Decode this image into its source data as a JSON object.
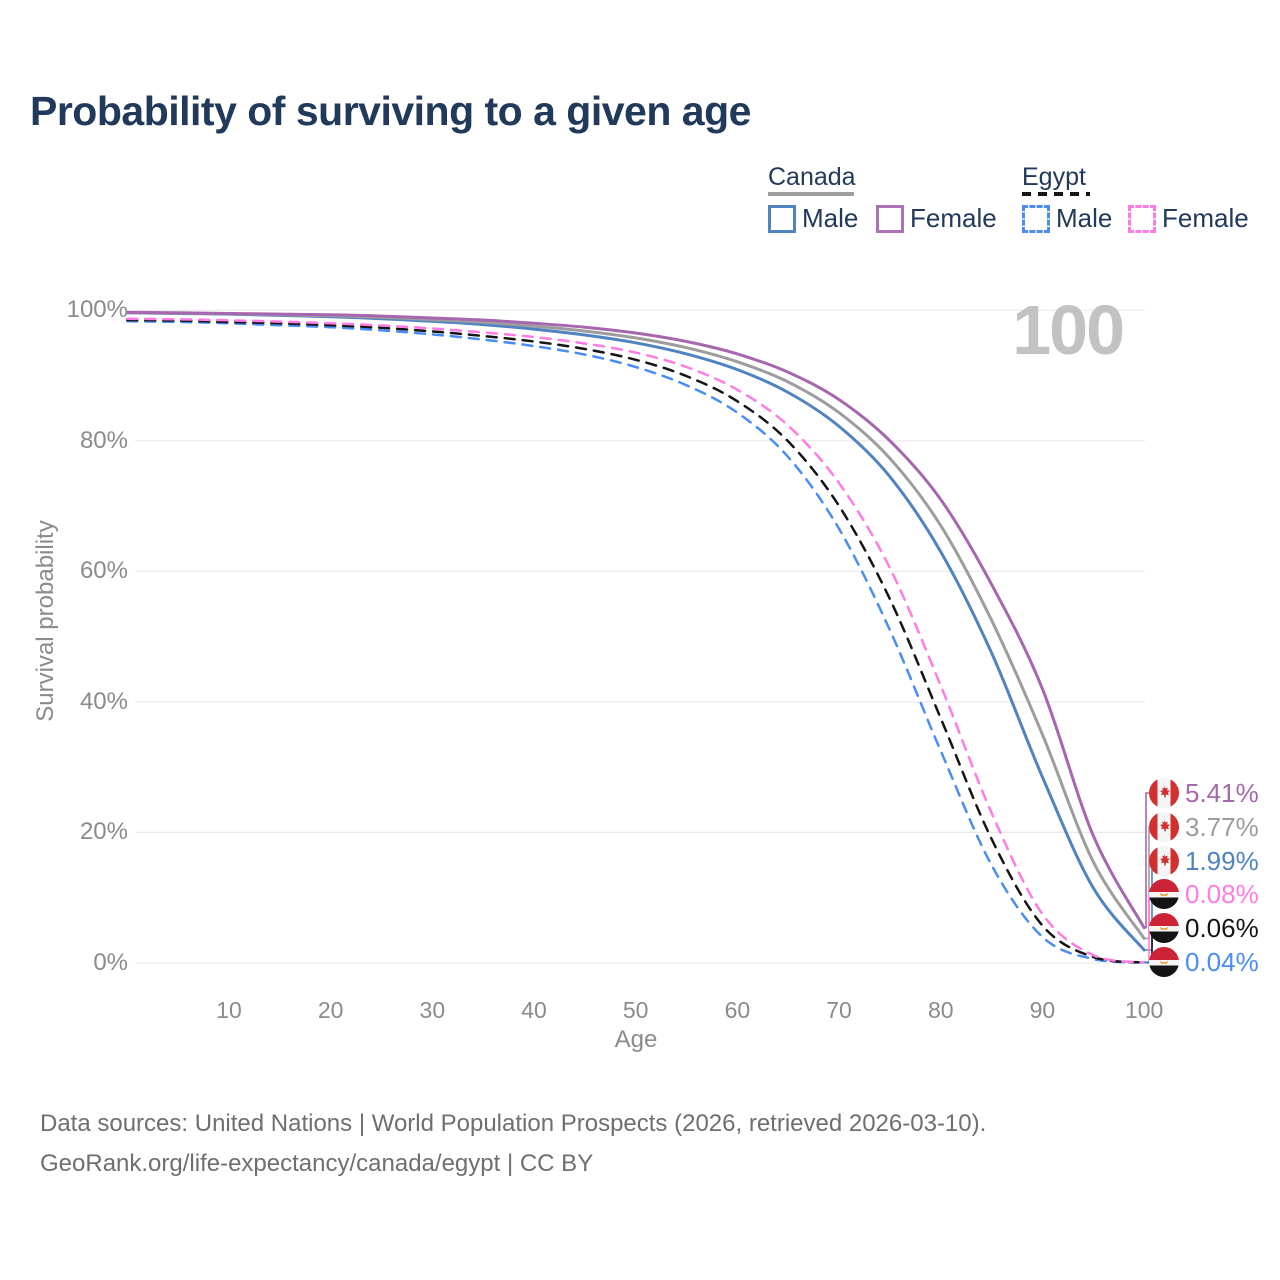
{
  "title": "Probability of surviving to a given age",
  "watermark": "100",
  "legend": {
    "canada": {
      "label": "Canada",
      "line_color": "#9d9d9d",
      "line_style": "solid"
    },
    "egypt": {
      "label": "Egypt",
      "line_color": "#151515",
      "line_style": "dashed"
    },
    "items": [
      {
        "group": "Canada",
        "label": "Male",
        "color": "#5083c1",
        "dash": false
      },
      {
        "group": "Canada",
        "label": "Female",
        "color": "#ad72b5",
        "dash": false
      },
      {
        "group": "Egypt",
        "label": "Male",
        "color": "#4a8ef5",
        "dash": true
      },
      {
        "group": "Egypt",
        "label": "Female",
        "color": "#ff7ce2",
        "dash": true
      }
    ]
  },
  "chart_data": {
    "type": "line",
    "title": "Probability of surviving to a given age",
    "xlabel": "Age",
    "ylabel": "Survival probability",
    "xlim": [
      0,
      100
    ],
    "ylim": [
      0,
      100
    ],
    "grid": "horizontal",
    "hover_age": "100",
    "x_ticks": [
      10,
      20,
      30,
      40,
      50,
      60,
      70,
      80,
      90,
      100
    ],
    "y_ticks": [
      0,
      20,
      40,
      60,
      80,
      100
    ],
    "y_tick_suffix": "%",
    "ages": [
      0,
      5,
      10,
      15,
      20,
      25,
      30,
      35,
      40,
      45,
      50,
      55,
      60,
      65,
      70,
      75,
      80,
      85,
      90,
      95,
      100
    ],
    "series": [
      {
        "name": "Egypt Male",
        "country": "Egypt",
        "sex": "Male",
        "color": "#4a8ef5",
        "dash": true,
        "end_label": "0.04%",
        "values": [
          98.3,
          98.2,
          98.0,
          97.7,
          97.4,
          96.9,
          96.3,
          95.5,
          94.5,
          93.2,
          91.3,
          88.5,
          84.3,
          77.5,
          66.5,
          51.0,
          32.5,
          15.0,
          4.0,
          0.6,
          0.04
        ]
      },
      {
        "name": "Egypt Both sexes",
        "country": "Egypt",
        "sex": "Both",
        "color": "#151515",
        "dash": true,
        "end_label": "0.06%",
        "values": [
          98.5,
          98.4,
          98.2,
          98.0,
          97.7,
          97.3,
          96.75,
          96.05,
          95.2,
          94.05,
          92.4,
          89.9,
          86.05,
          79.9,
          70.0,
          55.75,
          37.5,
          19.0,
          5.75,
          0.9,
          0.06
        ]
      },
      {
        "name": "Egypt Female",
        "country": "Egypt",
        "sex": "Female",
        "color": "#ff7ce2",
        "dash": true,
        "end_label": "0.08%",
        "values": [
          98.7,
          98.6,
          98.45,
          98.25,
          98.0,
          97.65,
          97.2,
          96.6,
          95.9,
          94.9,
          93.5,
          91.3,
          87.8,
          82.3,
          73.5,
          60.5,
          42.5,
          23.0,
          7.5,
          1.2,
          0.08
        ]
      },
      {
        "name": "Canada Male",
        "country": "Canada",
        "sex": "Male",
        "color": "#5083c1",
        "dash": false,
        "end_label": "1.99%",
        "values": [
          99.6,
          99.5,
          99.4,
          99.2,
          99.0,
          98.7,
          98.3,
          97.8,
          97.1,
          96.2,
          95.0,
          93.3,
          90.9,
          87.4,
          82.2,
          74.5,
          63.0,
          47.5,
          28.5,
          11.5,
          1.99
        ]
      },
      {
        "name": "Canada Both sexes",
        "country": "Canada",
        "sex": "Both",
        "color": "#9d9d9d",
        "dash": false,
        "end_label": "3.77%",
        "values": [
          99.65,
          99.55,
          99.45,
          99.3,
          99.15,
          98.9,
          98.55,
          98.15,
          97.55,
          96.8,
          95.75,
          94.25,
          92.1,
          89.0,
          84.3,
          77.3,
          67.0,
          52.5,
          35.0,
          15.5,
          3.77
        ]
      },
      {
        "name": "Canada Female",
        "country": "Canada",
        "sex": "Female",
        "color": "#a667ae",
        "dash": false,
        "end_label": "5.41%",
        "values": [
          99.7,
          99.6,
          99.5,
          99.4,
          99.3,
          99.1,
          98.8,
          98.5,
          98.0,
          97.4,
          96.5,
          95.2,
          93.3,
          90.5,
          86.3,
          80.0,
          71.0,
          58.0,
          42.0,
          19.5,
          5.41
        ]
      }
    ]
  },
  "footer": {
    "line1": "Data sources: United Nations | World Population Prospects (2026, retrieved 2026-03-10).",
    "line2": "GeoRank.org/life-expectancy/canada/egypt | CC BY"
  }
}
